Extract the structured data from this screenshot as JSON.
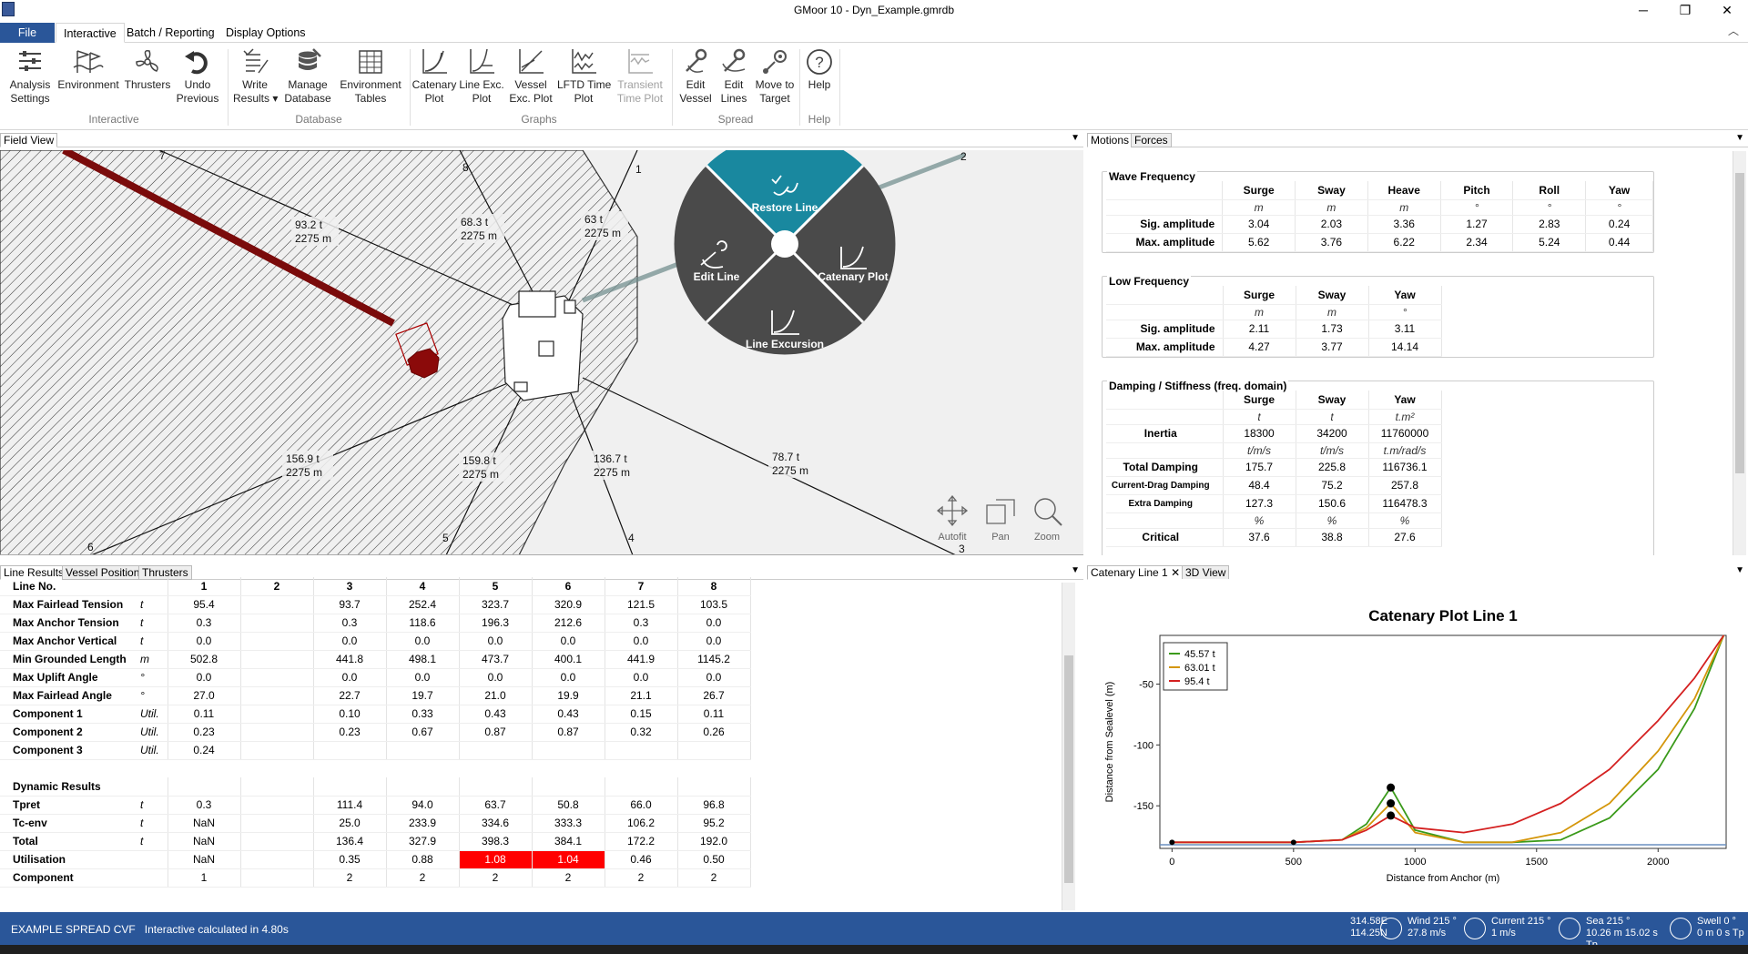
{
  "title": "GMoor 10 - Dyn_Example.gmrdb",
  "menu_tabs": [
    "File",
    "Interactive",
    "Batch / Reporting",
    "Display Options"
  ],
  "ribbon": {
    "buttons": [
      {
        "label": "Analysis\nSettings",
        "icon": "analysis-settings-icon"
      },
      {
        "label": "Environment",
        "icon": "environment-icon"
      },
      {
        "label": "Thrusters",
        "icon": "thrusters-icon"
      },
      {
        "label": "Undo\nPrevious",
        "icon": "undo-icon"
      },
      {
        "label": "Write\nResults ▾",
        "icon": "write-results-icon"
      },
      {
        "label": "Manage\nDatabase",
        "icon": "database-icon"
      },
      {
        "label": "Environment\nTables",
        "icon": "tables-icon"
      },
      {
        "label": "Catenary\nPlot",
        "icon": "catenary-icon"
      },
      {
        "label": "Line Exc.\nPlot",
        "icon": "line-exc-icon"
      },
      {
        "label": "Vessel\nExc. Plot",
        "icon": "vessel-exc-icon"
      },
      {
        "label": "LFTD Time\nPlot",
        "icon": "lftd-icon"
      },
      {
        "label": "Transient\nTime Plot",
        "icon": "transient-icon"
      },
      {
        "label": "Edit\nVessel",
        "icon": "edit-vessel-icon"
      },
      {
        "label": "Edit\nLines",
        "icon": "edit-lines-icon"
      },
      {
        "label": "Move to\nTarget",
        "icon": "move-target-icon"
      },
      {
        "label": "Help",
        "icon": "help-icon"
      }
    ],
    "groups": [
      "Interactive",
      "Database",
      "Graphs",
      "Spread",
      "Help"
    ]
  },
  "field_view": {
    "tab": "Field View",
    "line_labels": [
      {
        "t": "93.2 t",
        "l": "2275 m"
      },
      {
        "t": "68.3 t",
        "l": "2275 m"
      },
      {
        "t": "63 t",
        "l": "2275 m"
      },
      {
        "t": "156.9 t",
        "l": "2275 m"
      },
      {
        "t": "159.8 t",
        "l": "2275 m"
      },
      {
        "t": "136.7 t",
        "l": "2275 m"
      },
      {
        "t": "78.7 t",
        "l": "2275 m"
      }
    ],
    "line_numbers": [
      "7",
      "8",
      "1",
      "2",
      "6",
      "5",
      "4",
      "3"
    ],
    "radial_menu": {
      "restore": "Restore Line",
      "edit": "Edit Line",
      "catenary": "Catenary Plot",
      "excursion": "Line Excursion"
    },
    "tools": [
      "Autofit",
      "Pan",
      "Zoom"
    ]
  },
  "motions": {
    "tabs": [
      "Motions",
      "Forces"
    ],
    "wave": {
      "title": "Wave Frequency",
      "cols": [
        "Surge",
        "Sway",
        "Heave",
        "Pitch",
        "Roll",
        "Yaw"
      ],
      "units": [
        "m",
        "m",
        "m",
        "°",
        "°",
        "°"
      ],
      "rows": [
        {
          "label": "Sig. amplitude",
          "vals": [
            "3.04",
            "2.03",
            "3.36",
            "1.27",
            "2.83",
            "0.24"
          ]
        },
        {
          "label": "Max. amplitude",
          "vals": [
            "5.62",
            "3.76",
            "6.22",
            "2.34",
            "5.24",
            "0.44"
          ]
        }
      ]
    },
    "low": {
      "title": "Low Frequency",
      "cols": [
        "Surge",
        "Sway",
        "Yaw"
      ],
      "units": [
        "m",
        "m",
        "°"
      ],
      "rows": [
        {
          "label": "Sig. amplitude",
          "vals": [
            "2.11",
            "1.73",
            "3.11"
          ]
        },
        {
          "label": "Max. amplitude",
          "vals": [
            "4.27",
            "3.77",
            "14.14"
          ]
        }
      ]
    },
    "damping": {
      "title": "Damping / Stiffness (freq. domain)",
      "cols": [
        "Surge",
        "Sway",
        "Yaw"
      ],
      "units": [
        "t",
        "t",
        "t.m²"
      ],
      "inertia": {
        "label": "Inertia",
        "vals": [
          "18300",
          "34200",
          "11760000"
        ]
      },
      "units2": [
        "t/m/s",
        "t/m/s",
        "t.m/rad/s"
      ],
      "total": {
        "label": "Total Damping",
        "vals": [
          "175.7",
          "225.8",
          "116736.1"
        ]
      },
      "drag": {
        "label": "Current-Drag Damping",
        "vals": [
          "48.4",
          "75.2",
          "257.8"
        ]
      },
      "extra": {
        "label": "Extra Damping",
        "vals": [
          "127.3",
          "150.6",
          "116478.3"
        ]
      },
      "units3": [
        "%",
        "%",
        "%"
      ],
      "critical": {
        "label": "Critical",
        "vals": [
          "37.6",
          "38.8",
          "27.6"
        ]
      }
    }
  },
  "line_results": {
    "tabs": [
      "Line Results",
      "Vessel Position",
      "Thrusters"
    ],
    "header": "Line No.",
    "cols": [
      "1",
      "2",
      "3",
      "4",
      "5",
      "6",
      "7",
      "8"
    ],
    "rows": [
      {
        "n": "Max Fairlead Tension",
        "u": "t",
        "v": [
          "95.4",
          "",
          "93.7",
          "252.4",
          "323.7",
          "320.9",
          "121.5",
          "103.5"
        ]
      },
      {
        "n": "Max Anchor Tension",
        "u": "t",
        "v": [
          "0.3",
          "",
          "0.3",
          "118.6",
          "196.3",
          "212.6",
          "0.3",
          "0.0"
        ]
      },
      {
        "n": "Max Anchor Vertical",
        "u": "t",
        "v": [
          "0.0",
          "",
          "0.0",
          "0.0",
          "0.0",
          "0.0",
          "0.0",
          "0.0"
        ]
      },
      {
        "n": "Min Grounded Length",
        "u": "m",
        "v": [
          "502.8",
          "",
          "441.8",
          "498.1",
          "473.7",
          "400.1",
          "441.9",
          "1145.2"
        ]
      },
      {
        "n": "Max Uplift Angle",
        "u": "°",
        "v": [
          "0.0",
          "",
          "0.0",
          "0.0",
          "0.0",
          "0.0",
          "0.0",
          "0.0"
        ]
      },
      {
        "n": "Max Fairlead Angle",
        "u": "°",
        "v": [
          "27.0",
          "",
          "22.7",
          "19.7",
          "21.0",
          "19.9",
          "21.1",
          "26.7"
        ]
      },
      {
        "n": "Component 1",
        "u": "Util.",
        "v": [
          "0.11",
          "",
          "0.10",
          "0.33",
          "0.43",
          "0.43",
          "0.15",
          "0.11"
        ]
      },
      {
        "n": "Component 2",
        "u": "Util.",
        "v": [
          "0.23",
          "",
          "0.23",
          "0.67",
          "0.87",
          "0.87",
          "0.32",
          "0.26"
        ]
      },
      {
        "n": "Component 3",
        "u": "Util.",
        "v": [
          "0.24",
          "",
          "",
          "",
          "",
          "",
          "",
          ""
        ]
      }
    ],
    "dyn_header": "Dynamic Results",
    "dyn_rows": [
      {
        "n": "Tpret",
        "u": "t",
        "v": [
          "0.3",
          "",
          "111.4",
          "94.0",
          "63.7",
          "50.8",
          "66.0",
          "96.8"
        ]
      },
      {
        "n": "Tc-env",
        "u": "t",
        "v": [
          "NaN",
          "",
          "25.0",
          "233.9",
          "334.6",
          "333.3",
          "106.2",
          "95.2"
        ]
      },
      {
        "n": "Total",
        "u": "t",
        "v": [
          "NaN",
          "",
          "136.4",
          "327.9",
          "398.3",
          "384.1",
          "172.2",
          "192.0"
        ]
      },
      {
        "n": "Utilisation",
        "u": "",
        "v": [
          "NaN",
          "",
          "0.35",
          "0.88",
          "1.08",
          "1.04",
          "0.46",
          "0.50"
        ]
      },
      {
        "n": "Component",
        "u": "",
        "v": [
          "1",
          "",
          "2",
          "2",
          "2",
          "2",
          "2",
          "2"
        ]
      }
    ]
  },
  "catenary": {
    "tabs": [
      "Catenary Line 1",
      "3D View"
    ],
    "chart_data": {
      "type": "line",
      "title": "Catenary Plot Line 1",
      "xlabel": "Distance from Anchor (m)",
      "ylabel": "Distance from Sealevel (m)",
      "xlim": [
        -50,
        2280
      ],
      "ylim": [
        -185,
        -10
      ],
      "xticks": [
        0,
        500,
        1000,
        1500,
        2000
      ],
      "yticks": [
        -50,
        -100,
        -150
      ],
      "legend_position": "top-left",
      "series": [
        {
          "name": "45.57 t",
          "color": "#3a9a1a",
          "x": [
            0,
            500,
            700,
            800,
            900,
            1000,
            1200,
            1400,
            1600,
            1800,
            2000,
            2150,
            2270
          ],
          "y": [
            -180,
            -180,
            -178,
            -165,
            -135,
            -170,
            -180,
            -180,
            -178,
            -160,
            -120,
            -70,
            -10
          ]
        },
        {
          "name": "63.01 t",
          "color": "#d4960a",
          "x": [
            0,
            500,
            700,
            800,
            900,
            1000,
            1200,
            1400,
            1600,
            1800,
            2000,
            2150,
            2270
          ],
          "y": [
            -180,
            -180,
            -178,
            -168,
            -148,
            -172,
            -180,
            -180,
            -172,
            -148,
            -105,
            -62,
            -10
          ]
        },
        {
          "name": "95.4 t",
          "color": "#d42020",
          "x": [
            0,
            500,
            700,
            800,
            900,
            1000,
            1200,
            1400,
            1600,
            1800,
            2000,
            2150,
            2270
          ],
          "y": [
            -180,
            -180,
            -178,
            -170,
            -158,
            -168,
            -172,
            -165,
            -148,
            -120,
            -80,
            -45,
            -10
          ]
        }
      ]
    }
  },
  "status": {
    "spread": "EXAMPLE SPREAD CVF",
    "msg": "Interactive calculated in 4.80s",
    "pos1": "314.58E",
    "pos2": "114.25N",
    "wind1": "Wind 215 °",
    "wind2": "27.8 m/s",
    "current1": "Current 215 °",
    "current2": "1 m/s",
    "sea1": "Sea 215 °",
    "sea2": "10.26 m 15.02 s Tp",
    "swell1": "Swell 0 °",
    "swell2": "0 m 0 s Tp"
  }
}
